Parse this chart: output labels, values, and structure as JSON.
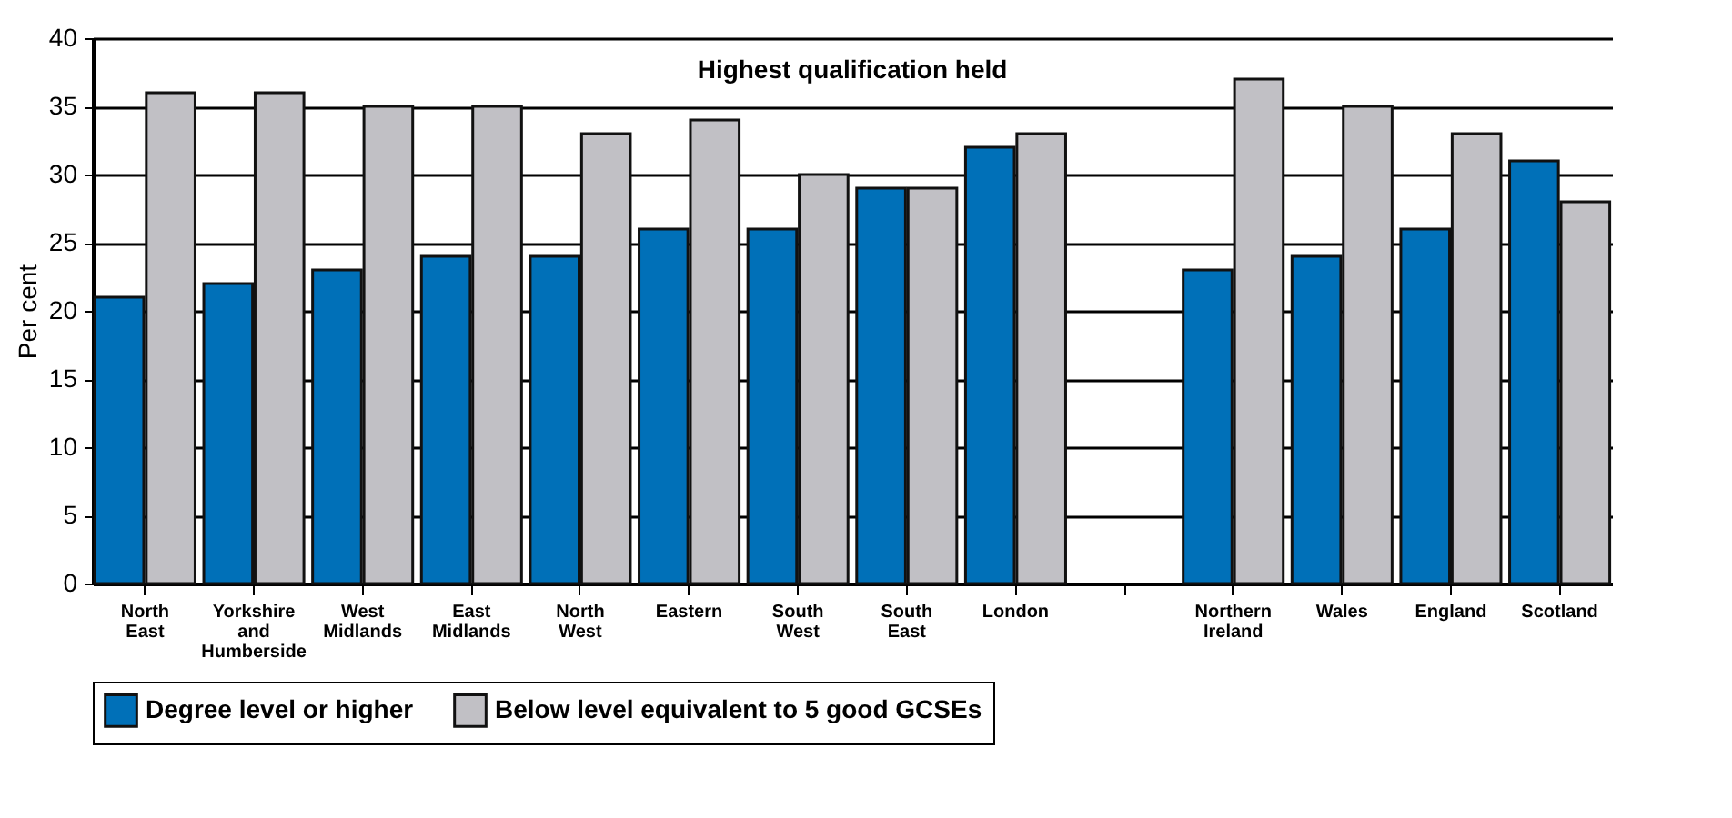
{
  "chart_data": {
    "type": "bar",
    "ylabel": "Per cent",
    "annotations": [
      "Highest qualification held"
    ],
    "categories": [
      "North East",
      "Yorkshire and Humberside",
      "West Midlands",
      "East Midlands",
      "North West",
      "Eastern",
      "South West",
      "South East",
      "London",
      null,
      "Northern Ireland",
      "Wales",
      "England",
      "Scotland"
    ],
    "series": [
      {
        "name": "Degree level or higher",
        "color": "#0070b8",
        "values": [
          21,
          22,
          23,
          24,
          24,
          26,
          26,
          29,
          32,
          null,
          23,
          24,
          26,
          31
        ]
      },
      {
        "name": "Below level equivalent to 5 good GCSEs",
        "color": "#c1c0c5",
        "values": [
          36,
          36,
          35,
          35,
          33,
          34,
          30,
          29,
          33,
          null,
          37,
          35,
          33,
          28
        ]
      }
    ],
    "ylim": [
      0,
      40
    ],
    "yticks": [
      0,
      5,
      10,
      15,
      20,
      25,
      30,
      35,
      40
    ],
    "grid": "y",
    "legend": "bottom"
  }
}
